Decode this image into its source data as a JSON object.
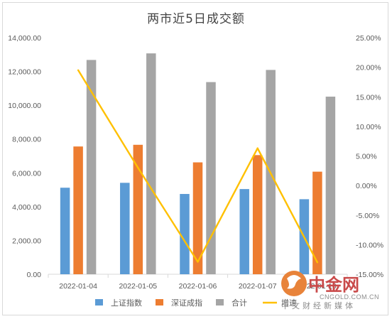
{
  "chart_data": {
    "type": "bar",
    "title": "两市近5日成交额",
    "categories": [
      "2022-01-04",
      "2022-01-05",
      "2022-01-06",
      "2022-01-07",
      "2022-01-10"
    ],
    "series": [
      {
        "name": "上证指数",
        "type": "bar",
        "axis": "left",
        "color": "#5b9bd5",
        "values": [
          5120,
          5410,
          4750,
          5040,
          4440
        ]
      },
      {
        "name": "深证成指",
        "type": "bar",
        "axis": "left",
        "color": "#ed7d31",
        "values": [
          7560,
          7660,
          6620,
          7050,
          6070
        ]
      },
      {
        "name": "合计",
        "type": "bar",
        "axis": "left",
        "color": "#a5a5a5",
        "values": [
          12680,
          13070,
          11370,
          12090,
          10510
        ]
      },
      {
        "name": "增速",
        "type": "line",
        "axis": "right",
        "color": "#ffc000",
        "values": [
          19.5,
          3.0,
          -12.9,
          6.3,
          -13.0
        ]
      }
    ],
    "ylim": [
      0,
      14000
    ],
    "y2lim": [
      -15,
      25
    ],
    "y_ticks": [
      "0.00",
      "2,000.00",
      "4,000.00",
      "6,000.00",
      "8,000.00",
      "10,000.00",
      "12,000.00",
      "14,000.00"
    ],
    "y2_ticks": [
      "-15.00%",
      "-10.00%",
      "-5.00%",
      "0.00%",
      "5.00%",
      "10.00%",
      "15.00%",
      "20.00%",
      "25.00%"
    ],
    "grid": false,
    "legend_position": "bottom"
  },
  "watermark": {
    "name": "中金网",
    "url": "CNGOLD.COM.CN",
    "tagline": "中文财经新媒体",
    "colors": {
      "red": "#c94a4a",
      "orange": "#e8833a"
    }
  }
}
